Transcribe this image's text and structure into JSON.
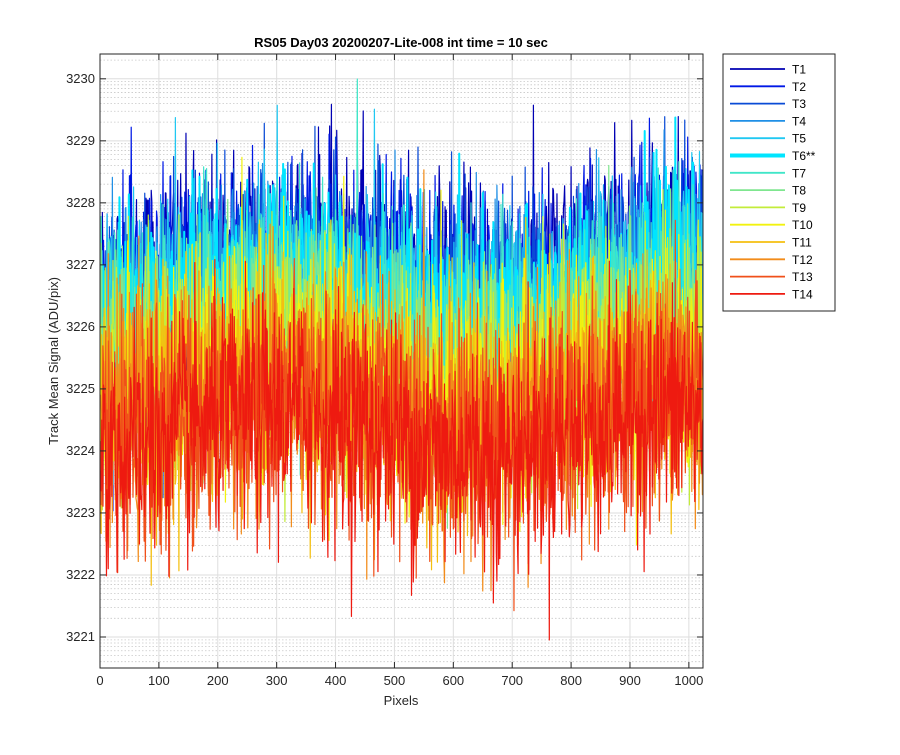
{
  "figure": {
    "title": "RS05 Day03 20200207-Lite-008 int time = 10 sec"
  },
  "chart_data": {
    "type": "line",
    "title": "RS05 Day03 20200207-Lite-008 int time = 10 sec",
    "xlabel": "Pixels",
    "ylabel": "Track Mean Signal (ADU/pix)",
    "xlim": [
      0,
      1024
    ],
    "ylim": [
      3220.5,
      3230.4
    ],
    "x_ticks": [
      0,
      100,
      200,
      300,
      400,
      500,
      600,
      700,
      800,
      900,
      1000
    ],
    "y_ticks": [
      3221,
      3222,
      3223,
      3224,
      3225,
      3226,
      3227,
      3228,
      3229,
      3230
    ],
    "grid": true,
    "minor_grid": true,
    "legend_position": "outside-right-top",
    "x_start": 1,
    "x_end": 1024,
    "series": [
      {
        "name": "T1",
        "color": "#0000b3",
        "mean": 3227.0,
        "noise_sd": 0.95
      },
      {
        "name": "T2",
        "color": "#0018e6",
        "mean": 3226.8,
        "noise_sd": 0.95
      },
      {
        "name": "T3",
        "color": "#0a4bd6",
        "mean": 3226.6,
        "noise_sd": 0.95
      },
      {
        "name": "T4",
        "color": "#1f8fe6",
        "mean": 3226.5,
        "noise_sd": 0.95
      },
      {
        "name": "T5",
        "color": "#20c8f2",
        "mean": 3226.4,
        "noise_sd": 0.95
      },
      {
        "name": "T6**",
        "color": "#00e5ff",
        "mean": 3226.3,
        "noise_sd": 0.95,
        "highlighted": true
      },
      {
        "name": "T7",
        "color": "#40e6c8",
        "mean": 3226.0,
        "noise_sd": 1.0
      },
      {
        "name": "T8",
        "color": "#7fe68f",
        "mean": 3225.7,
        "noise_sd": 1.0
      },
      {
        "name": "T9",
        "color": "#c3ec3a",
        "mean": 3225.5,
        "noise_sd": 1.0
      },
      {
        "name": "T10",
        "color": "#f2f20f",
        "mean": 3225.1,
        "noise_sd": 1.05
      },
      {
        "name": "T11",
        "color": "#f4bf10",
        "mean": 3224.9,
        "noise_sd": 1.05
      },
      {
        "name": "T12",
        "color": "#f28c1a",
        "mean": 3224.7,
        "noise_sd": 1.05
      },
      {
        "name": "T13",
        "color": "#f0501a",
        "mean": 3224.5,
        "noise_sd": 1.05
      },
      {
        "name": "T14",
        "color": "#ee1a10",
        "mean": 3224.3,
        "noise_sd": 1.05
      }
    ]
  }
}
